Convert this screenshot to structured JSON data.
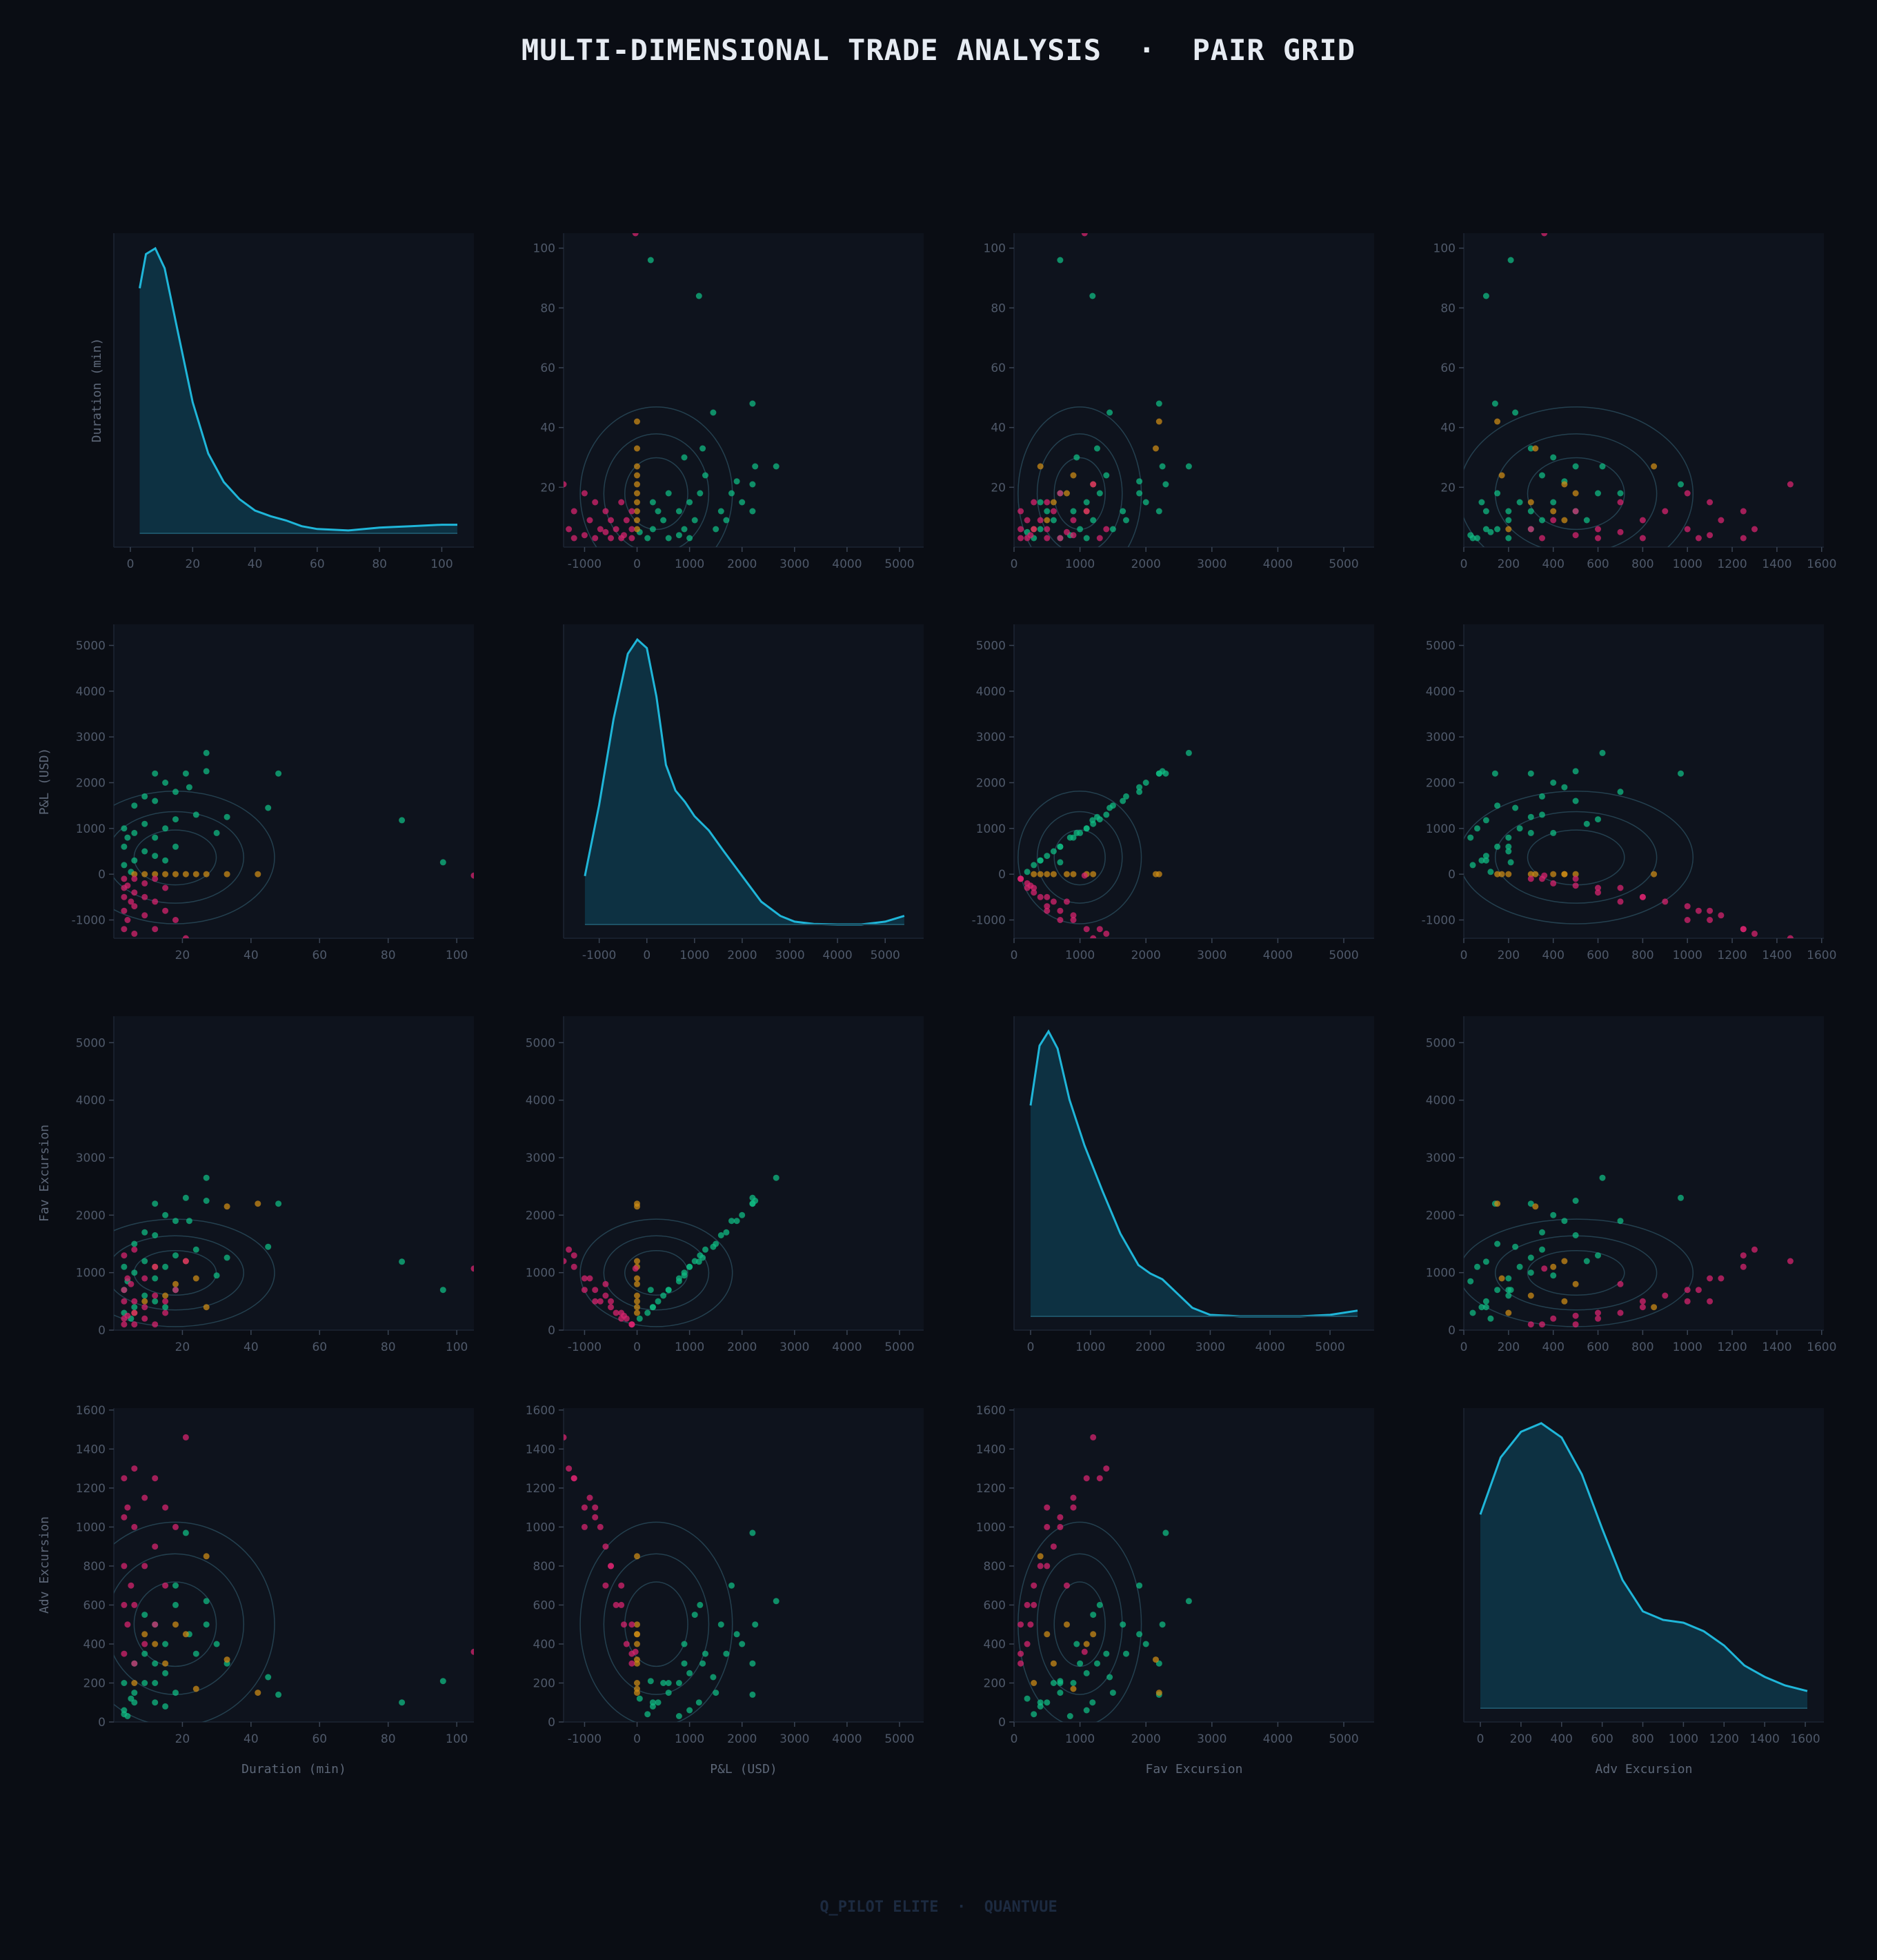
{
  "title": "MULTI-DIMENSIONAL TRADE ANALYSIS  ·  PAIR GRID",
  "footer": "Q_PILOT ELITE  ·  QUANTVUE",
  "colors": {
    "background": "#0a0d14",
    "panel": "#0e131d",
    "kde_line": "#1fb6d9",
    "kde_fill": "#0e3345",
    "contour": "#24404f",
    "win": "#10b981",
    "loss": "#d6246d",
    "breakeven": "#c98a16",
    "tick_text": "#4f596a",
    "label_text": "#5d6778"
  },
  "chart_data": {
    "type": "scatter",
    "subtype": "pair-grid",
    "title": "MULTI-DIMENSIONAL TRADE ANALYSIS  ·  PAIR GRID",
    "legend": "none",
    "grid": false,
    "diagonal": "kde",
    "off_diagonal": "scatter + kde contours",
    "variables": [
      {
        "name": "Duration (min)",
        "range": [
          0,
          105
        ],
        "ticks": [
          0,
          20,
          40,
          60,
          80,
          100
        ],
        "offdiag_ticks": [
          20,
          40,
          60,
          80,
          100
        ]
      },
      {
        "name": "P&L (USD)",
        "range": [
          -1400,
          5460
        ],
        "ticks": [
          -1000,
          0,
          1000,
          2000,
          3000,
          4000,
          5000
        ]
      },
      {
        "name": "Fav Excursion",
        "range": [
          0,
          5460
        ],
        "ticks": [
          0,
          1000,
          2000,
          3000,
          4000,
          5000
        ]
      },
      {
        "name": "Adv Excursion",
        "range": [
          0,
          1610
        ],
        "ticks": [
          0,
          200,
          400,
          600,
          800,
          1000,
          1200,
          1400,
          1600
        ]
      }
    ],
    "kde_curves": [
      {
        "variable": "Duration (min)",
        "x": [
          3,
          5,
          8,
          11,
          15,
          20,
          25,
          30,
          35,
          40,
          45,
          50,
          55,
          60,
          70,
          80,
          90,
          100,
          105
        ],
        "density": [
          0.86,
          0.98,
          1.0,
          0.93,
          0.72,
          0.46,
          0.28,
          0.18,
          0.12,
          0.08,
          0.06,
          0.045,
          0.025,
          0.015,
          0.01,
          0.02,
          0.025,
          0.03,
          0.03
        ]
      },
      {
        "variable": "P&L (USD)",
        "x": [
          -1300,
          -1000,
          -700,
          -400,
          -200,
          0,
          200,
          400,
          600,
          800,
          1000,
          1300,
          1600,
          2000,
          2400,
          2800,
          3100,
          3500,
          4000,
          4500,
          5000,
          5400
        ],
        "density": [
          0.17,
          0.42,
          0.72,
          0.95,
          1.0,
          0.97,
          0.8,
          0.56,
          0.47,
          0.43,
          0.38,
          0.33,
          0.26,
          0.17,
          0.08,
          0.03,
          0.01,
          0.002,
          0.0,
          0.0,
          0.01,
          0.03
        ]
      },
      {
        "variable": "Fav Excursion",
        "x": [
          0,
          150,
          300,
          450,
          650,
          900,
          1200,
          1500,
          1800,
          2000,
          2200,
          2400,
          2700,
          3000,
          3500,
          4000,
          4500,
          5000,
          5460
        ],
        "density": [
          0.74,
          0.95,
          1.0,
          0.94,
          0.76,
          0.6,
          0.44,
          0.29,
          0.18,
          0.15,
          0.13,
          0.09,
          0.03,
          0.005,
          0.0,
          0.0,
          0.0,
          0.005,
          0.02
        ]
      },
      {
        "variable": "Adv Excursion",
        "x": [
          0,
          100,
          200,
          300,
          400,
          500,
          600,
          700,
          800,
          900,
          1000,
          1100,
          1200,
          1300,
          1400,
          1500,
          1610
        ],
        "density": [
          0.68,
          0.88,
          0.97,
          1.0,
          0.95,
          0.82,
          0.63,
          0.45,
          0.34,
          0.31,
          0.3,
          0.27,
          0.22,
          0.15,
          0.11,
          0.08,
          0.06
        ]
      }
    ],
    "trades": [
      {
        "dur": 96,
        "pnl": 260,
        "fav": 700,
        "adv": 210
      },
      {
        "dur": 84,
        "pnl": 1180,
        "fav": 1190,
        "adv": 100
      },
      {
        "dur": 48,
        "pnl": 2200,
        "fav": 2200,
        "adv": 140
      },
      {
        "dur": 45,
        "pnl": 1450,
        "fav": 1450,
        "adv": 230
      },
      {
        "dur": 33,
        "pnl": 1250,
        "fav": 1260,
        "adv": 300
      },
      {
        "dur": 30,
        "pnl": 900,
        "fav": 950,
        "adv": 400
      },
      {
        "dur": 27,
        "pnl": 2650,
        "fav": 2650,
        "adv": 620
      },
      {
        "dur": 27,
        "pnl": 2250,
        "fav": 2250,
        "adv": 500
      },
      {
        "dur": 24,
        "pnl": 1300,
        "fav": 1400,
        "adv": 350
      },
      {
        "dur": 22,
        "pnl": 1900,
        "fav": 1900,
        "adv": 450
      },
      {
        "dur": 21,
        "pnl": 2200,
        "fav": 2300,
        "adv": 970
      },
      {
        "dur": 18,
        "pnl": 1800,
        "fav": 1900,
        "adv": 700
      },
      {
        "dur": 18,
        "pnl": 1200,
        "fav": 1300,
        "adv": 600
      },
      {
        "dur": 18,
        "pnl": 600,
        "fav": 700,
        "adv": 150
      },
      {
        "dur": 15,
        "pnl": 2000,
        "fav": 2000,
        "adv": 400
      },
      {
        "dur": 15,
        "pnl": 1000,
        "fav": 1100,
        "adv": 250
      },
      {
        "dur": 15,
        "pnl": 300,
        "fav": 400,
        "adv": 80
      },
      {
        "dur": 12,
        "pnl": 2200,
        "fav": 2200,
        "adv": 300
      },
      {
        "dur": 12,
        "pnl": 1600,
        "fav": 1650,
        "adv": 500
      },
      {
        "dur": 12,
        "pnl": 800,
        "fav": 900,
        "adv": 200
      },
      {
        "dur": 12,
        "pnl": 400,
        "fav": 500,
        "adv": 100
      },
      {
        "dur": 9,
        "pnl": 1700,
        "fav": 1700,
        "adv": 350
      },
      {
        "dur": 9,
        "pnl": 1100,
        "fav": 1200,
        "adv": 550
      },
      {
        "dur": 9,
        "pnl": 500,
        "fav": 600,
        "adv": 200
      },
      {
        "dur": 6,
        "pnl": 1500,
        "fav": 1500,
        "adv": 150
      },
      {
        "dur": 6,
        "pnl": 900,
        "fav": 1000,
        "adv": 300
      },
      {
        "dur": 6,
        "pnl": 300,
        "fav": 400,
        "adv": 100
      },
      {
        "dur": 3,
        "pnl": 1000,
        "fav": 1100,
        "adv": 60
      },
      {
        "dur": 3,
        "pnl": 600,
        "fav": 700,
        "adv": 200
      },
      {
        "dur": 3,
        "pnl": 200,
        "fav": 300,
        "adv": 40
      },
      {
        "dur": 4,
        "pnl": 800,
        "fav": 850,
        "adv": 30
      },
      {
        "dur": 5,
        "pnl": 50,
        "fav": 200,
        "adv": 120
      },
      {
        "dur": 42,
        "pnl": 0,
        "fav": 2200,
        "adv": 150
      },
      {
        "dur": 33,
        "pnl": 0,
        "fav": 2150,
        "adv": 320
      },
      {
        "dur": 27,
        "pnl": 0,
        "fav": 400,
        "adv": 850
      },
      {
        "dur": 24,
        "pnl": 0,
        "fav": 900,
        "adv": 170
      },
      {
        "dur": 21,
        "pnl": 0,
        "fav": 1200,
        "adv": 450
      },
      {
        "dur": 18,
        "pnl": 0,
        "fav": 800,
        "adv": 500
      },
      {
        "dur": 15,
        "pnl": 0,
        "fav": 600,
        "adv": 300
      },
      {
        "dur": 12,
        "pnl": 0,
        "fav": 1100,
        "adv": 400
      },
      {
        "dur": 9,
        "pnl": 0,
        "fav": 500,
        "adv": 450
      },
      {
        "dur": 6,
        "pnl": 0,
        "fav": 300,
        "adv": 200
      },
      {
        "dur": 105,
        "pnl": -30,
        "fav": 1070,
        "adv": 360
      },
      {
        "dur": 21,
        "pnl": -1400,
        "fav": 1200,
        "adv": 1460
      },
      {
        "dur": 18,
        "pnl": -1000,
        "fav": 700,
        "adv": 1000
      },
      {
        "dur": 15,
        "pnl": -800,
        "fav": 500,
        "adv": 1100
      },
      {
        "dur": 15,
        "pnl": -300,
        "fav": 300,
        "adv": 700
      },
      {
        "dur": 12,
        "pnl": -1200,
        "fav": 1100,
        "adv": 1250
      },
      {
        "dur": 12,
        "pnl": -600,
        "fav": 600,
        "adv": 900
      },
      {
        "dur": 12,
        "pnl": -100,
        "fav": 100,
        "adv": 500
      },
      {
        "dur": 9,
        "pnl": -900,
        "fav": 900,
        "adv": 1150
      },
      {
        "dur": 9,
        "pnl": -500,
        "fav": 400,
        "adv": 800
      },
      {
        "dur": 9,
        "pnl": -200,
        "fav": 200,
        "adv": 400
      },
      {
        "dur": 6,
        "pnl": -1300,
        "fav": 1400,
        "adv": 1300
      },
      {
        "dur": 6,
        "pnl": -700,
        "fav": 500,
        "adv": 1000
      },
      {
        "dur": 6,
        "pnl": -400,
        "fav": 300,
        "adv": 600
      },
      {
        "dur": 6,
        "pnl": -100,
        "fav": 100,
        "adv": 300
      },
      {
        "dur": 3,
        "pnl": -1200,
        "fav": 1300,
        "adv": 1250
      },
      {
        "dur": 3,
        "pnl": -800,
        "fav": 700,
        "adv": 1050
      },
      {
        "dur": 3,
        "pnl": -500,
        "fav": 500,
        "adv": 800
      },
      {
        "dur": 3,
        "pnl": -300,
        "fav": 200,
        "adv": 600
      },
      {
        "dur": 3,
        "pnl": -100,
        "fav": 100,
        "adv": 350
      },
      {
        "dur": 5,
        "pnl": -600,
        "fav": 800,
        "adv": 700
      },
      {
        "dur": 4,
        "pnl": -1000,
        "fav": 900,
        "adv": 1100
      },
      {
        "dur": 4,
        "pnl": -250,
        "fav": 250,
        "adv": 500
      }
    ]
  }
}
